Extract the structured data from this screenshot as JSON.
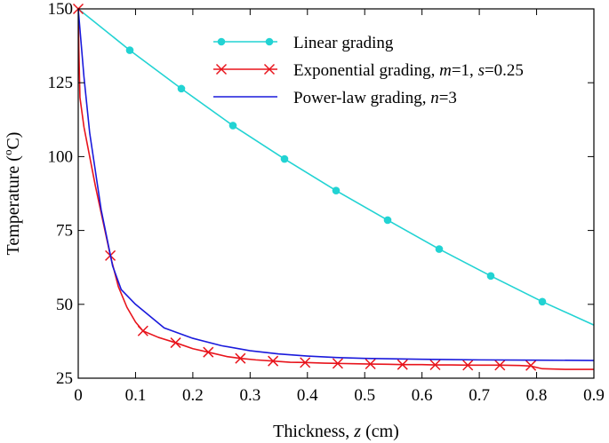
{
  "chart_data": {
    "type": "line",
    "title": "",
    "xlabel_pre": "Thickness, ",
    "xlabel_var": "z",
    "xlabel_post": " (cm)",
    "ylabel_pre": "Temperature (",
    "ylabel_sup": "o",
    "ylabel_post": "C)",
    "xlim": [
      0,
      0.9
    ],
    "ylim": [
      25,
      150
    ],
    "xticks": [
      0,
      0.1,
      0.2,
      0.3,
      0.4,
      0.5,
      0.6,
      0.7,
      0.8,
      0.9
    ],
    "xtick_labels": [
      "0",
      "0.1",
      "0.2",
      "0.3",
      "0.4",
      "0.5",
      "0.6",
      "0.7",
      "0.8",
      "0.9"
    ],
    "yticks": [
      25,
      50,
      75,
      100,
      125,
      150
    ],
    "ytick_labels": [
      "25",
      "50",
      "75",
      "100",
      "125",
      "150"
    ],
    "grid": false,
    "legend_position": "top-right",
    "series": [
      {
        "name": "Linear grading",
        "label_parts": [
          {
            "text": "Linear grading",
            "italic": false
          }
        ],
        "color": "#22d3d3",
        "marker": "circle",
        "x": [
          0,
          0.09,
          0.18,
          0.27,
          0.36,
          0.45,
          0.54,
          0.63,
          0.72,
          0.81,
          0.9
        ],
        "y": [
          150,
          136,
          123,
          110.5,
          99.2,
          88.5,
          78.5,
          68.7,
          59.6,
          50.9,
          43
        ],
        "marker_x": [
          0.09,
          0.18,
          0.27,
          0.36,
          0.45,
          0.54,
          0.63,
          0.72,
          0.81
        ],
        "marker_y": [
          136,
          123,
          110.5,
          99.2,
          88.5,
          78.5,
          68.7,
          59.6,
          50.9
        ]
      },
      {
        "name": "Exponential grading, m=1, s=0.25",
        "label_parts": [
          {
            "text": "Exponential grading, ",
            "italic": false
          },
          {
            "text": "m",
            "italic": true
          },
          {
            "text": "=1, ",
            "italic": false
          },
          {
            "text": "s",
            "italic": true
          },
          {
            "text": "=0.25",
            "italic": false
          }
        ],
        "color": "#e8141c",
        "marker": "x",
        "x": [
          0,
          0.001,
          0.003,
          0.01,
          0.03,
          0.056,
          0.07,
          0.085,
          0.1,
          0.113,
          0.14,
          0.17,
          0.2,
          0.227,
          0.26,
          0.283,
          0.31,
          0.34,
          0.37,
          0.396,
          0.43,
          0.453,
          0.48,
          0.51,
          0.54,
          0.566,
          0.6,
          0.623,
          0.65,
          0.68,
          0.71,
          0.736,
          0.77,
          0.79,
          0.81,
          0.85,
          0.9
        ],
        "y": [
          150,
          137,
          120,
          110,
          90,
          66.5,
          56,
          49,
          44,
          41,
          38.8,
          37,
          35,
          33.8,
          32.3,
          31.7,
          31.2,
          30.8,
          30.4,
          30.3,
          30.1,
          30,
          29.9,
          29.8,
          29.7,
          29.6,
          29.6,
          29.5,
          29.5,
          29.4,
          29.4,
          29.4,
          29.3,
          29.1,
          28.2,
          28,
          28
        ],
        "marker_x": [
          0,
          0.056,
          0.113,
          0.17,
          0.227,
          0.283,
          0.34,
          0.396,
          0.453,
          0.51,
          0.566,
          0.623,
          0.68,
          0.736,
          0.79
        ],
        "marker_y": [
          150,
          66.5,
          41,
          37,
          33.8,
          31.7,
          30.8,
          30.3,
          30,
          29.8,
          29.6,
          29.5,
          29.4,
          29.4,
          29.3
        ]
      },
      {
        "name": "Power-law grading, n=3",
        "label_parts": [
          {
            "text": "Power-law grading, ",
            "italic": false
          },
          {
            "text": "n",
            "italic": true
          },
          {
            "text": "=3",
            "italic": false
          }
        ],
        "color": "#1a1adc",
        "marker": "none",
        "x": [
          0,
          0.01,
          0.02,
          0.04,
          0.06,
          0.075,
          0.1,
          0.15,
          0.2,
          0.25,
          0.3,
          0.35,
          0.4,
          0.45,
          0.5,
          0.6,
          0.7,
          0.8,
          0.9
        ],
        "y": [
          150,
          127,
          108,
          82,
          63,
          55,
          50,
          42,
          38.5,
          36,
          34.3,
          33.2,
          32.5,
          32,
          31.7,
          31.4,
          31.2,
          31.1,
          31
        ]
      }
    ]
  }
}
